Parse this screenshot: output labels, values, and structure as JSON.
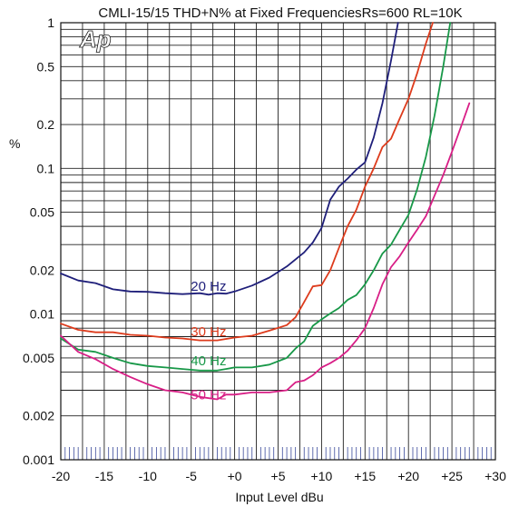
{
  "chart_data": {
    "type": "line",
    "title": "CMLI-15/15  THD+N% at Fixed FrequenciesRs=600 RL=10K",
    "xlabel": "Input Level dBu",
    "ylabel": "%",
    "logo_text": "Ap",
    "x_scale": "linear",
    "y_scale": "log",
    "xlim": [
      -20,
      30
    ],
    "ylim": [
      0.001,
      1
    ],
    "grid": true,
    "x_ticks": [
      {
        "value": -20,
        "label": "-20"
      },
      {
        "value": -15,
        "label": "-15"
      },
      {
        "value": -10,
        "label": "-10"
      },
      {
        "value": -5,
        "label": "-5"
      },
      {
        "value": 0,
        "label": "+0"
      },
      {
        "value": 5,
        "label": "+5"
      },
      {
        "value": 10,
        "label": "+10"
      },
      {
        "value": 15,
        "label": "+15"
      },
      {
        "value": 20,
        "label": "+20"
      },
      {
        "value": 25,
        "label": "+25"
      },
      {
        "value": 30,
        "label": "+30"
      }
    ],
    "y_ticks": [
      {
        "value": 1,
        "label": "1"
      },
      {
        "value": 0.5,
        "label": "0.5"
      },
      {
        "value": 0.2,
        "label": "0.2"
      },
      {
        "value": 0.1,
        "label": "0.1"
      },
      {
        "value": 0.05,
        "label": "0.05"
      },
      {
        "value": 0.02,
        "label": "0.02"
      },
      {
        "value": 0.01,
        "label": "0.01"
      },
      {
        "value": 0.005,
        "label": "0.005"
      },
      {
        "value": 0.002,
        "label": "0.002"
      },
      {
        "value": 0.001,
        "label": "0.001"
      }
    ],
    "series": [
      {
        "name": "20 Hz",
        "color": "#1f1f7a",
        "label_at": [
          -3,
          0.0155
        ],
        "x": [
          -20,
          -18,
          -16,
          -14,
          -12,
          -10,
          -8,
          -6,
          -4,
          -3,
          -2,
          -1,
          0,
          2,
          4,
          6,
          8,
          9,
          10,
          11,
          12,
          13,
          14,
          15,
          16,
          17,
          18,
          18.8
        ],
        "y": [
          0.019,
          0.017,
          0.0163,
          0.0148,
          0.0143,
          0.0142,
          0.0139,
          0.0137,
          0.0139,
          0.0136,
          0.0139,
          0.0138,
          0.0143,
          0.0157,
          0.0178,
          0.0212,
          0.0265,
          0.031,
          0.039,
          0.061,
          0.075,
          0.085,
          0.098,
          0.11,
          0.163,
          0.28,
          0.55,
          1.0
        ]
      },
      {
        "name": "30 Hz",
        "color": "#dd3b1c",
        "label_at": [
          -3,
          0.0076
        ],
        "x": [
          -20,
          -18,
          -16,
          -14,
          -12,
          -10,
          -8,
          -6,
          -4,
          -2,
          0,
          2,
          4,
          6,
          7,
          8,
          9,
          10,
          11,
          12,
          13,
          14,
          15,
          16,
          17,
          18,
          19,
          20,
          21,
          22,
          22.8
        ],
        "y": [
          0.0086,
          0.0078,
          0.0075,
          0.0075,
          0.0072,
          0.0071,
          0.0069,
          0.0068,
          0.0066,
          0.0066,
          0.0069,
          0.0071,
          0.0077,
          0.0084,
          0.0095,
          0.0121,
          0.0155,
          0.0158,
          0.02,
          0.0285,
          0.04,
          0.052,
          0.075,
          0.1,
          0.14,
          0.16,
          0.22,
          0.3,
          0.45,
          0.72,
          1.0
        ]
      },
      {
        "name": "40 Hz",
        "color": "#189848",
        "label_at": [
          -3,
          0.0048
        ],
        "x": [
          -20,
          -18,
          -16,
          -14,
          -12,
          -10,
          -8,
          -6,
          -4,
          -2,
          -1,
          0,
          2,
          4,
          6,
          7,
          8,
          9,
          10,
          11,
          12,
          13,
          14,
          15,
          16,
          17,
          18,
          19,
          20,
          21,
          22,
          23,
          24,
          24.8
        ],
        "y": [
          0.0068,
          0.0057,
          0.0055,
          0.005,
          0.0046,
          0.0044,
          0.0043,
          0.0042,
          0.0041,
          0.0041,
          0.0042,
          0.0043,
          0.0043,
          0.0045,
          0.005,
          0.0058,
          0.0065,
          0.0083,
          0.0092,
          0.0101,
          0.011,
          0.0125,
          0.0135,
          0.016,
          0.02,
          0.026,
          0.03,
          0.038,
          0.048,
          0.072,
          0.12,
          0.23,
          0.5,
          1.0
        ]
      },
      {
        "name": "50 Hz",
        "color": "#d81e86",
        "label_at": [
          -3,
          0.0028
        ],
        "x": [
          -20,
          -18,
          -16,
          -14,
          -12,
          -10,
          -8,
          -6,
          -4,
          -2,
          -1,
          0,
          2,
          4,
          6,
          7,
          8,
          9,
          10,
          11,
          12,
          13,
          14,
          15,
          16,
          17,
          18,
          19,
          20,
          21,
          22,
          23,
          24,
          25,
          26,
          27
        ],
        "y": [
          0.0071,
          0.0055,
          0.0049,
          0.0042,
          0.0037,
          0.0033,
          0.003,
          0.0029,
          0.0027,
          0.0026,
          0.0028,
          0.0028,
          0.0029,
          0.0029,
          0.003,
          0.0034,
          0.0035,
          0.0038,
          0.0043,
          0.0046,
          0.005,
          0.0056,
          0.0066,
          0.008,
          0.011,
          0.016,
          0.021,
          0.025,
          0.031,
          0.038,
          0.047,
          0.065,
          0.09,
          0.13,
          0.19,
          0.28
        ]
      }
    ]
  }
}
